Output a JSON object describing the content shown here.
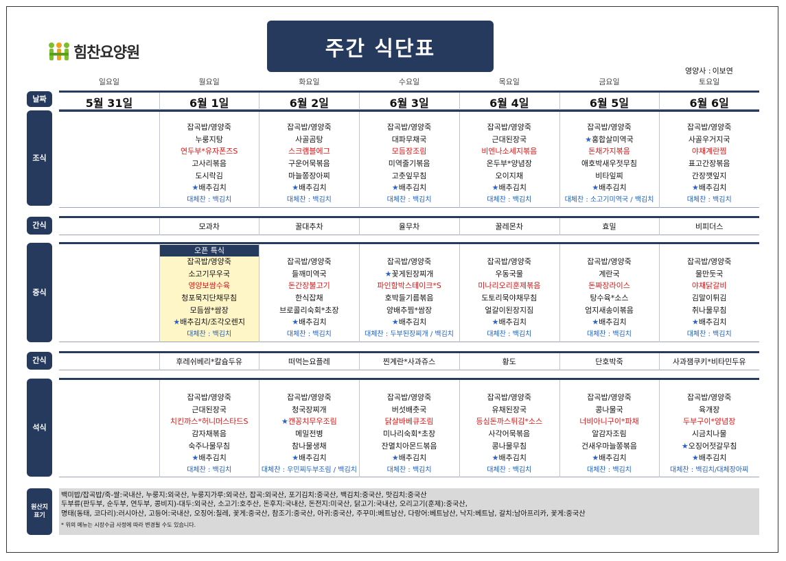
{
  "logo": {
    "text": "힘찬요양원"
  },
  "title": "주간 식단표",
  "dietitian": {
    "label": "영양사 :",
    "name": "이보연"
  },
  "days": [
    "일요일",
    "월요일",
    "화요일",
    "수요일",
    "목요일",
    "금요일",
    "토요일"
  ],
  "dates": [
    "5월 31일",
    "6월 1일",
    "6월 2일",
    "6월 3일",
    "6월 4일",
    "6월 5일",
    "6월 6일"
  ],
  "labels": {
    "date": "날짜",
    "breakfast": "조식",
    "snack1": "간식",
    "lunch": "중식",
    "snack2": "간식",
    "dinner": "석식",
    "origin": "원산지표기"
  },
  "special_label": "오픈 특식",
  "breakfast": [
    [],
    [
      {
        "t": "잡곡밥/영양죽"
      },
      {
        "t": "누룽지탕"
      },
      {
        "t": "연두부*유자폰즈S",
        "red": true
      },
      {
        "t": "고사리볶음"
      },
      {
        "t": "도시락김"
      },
      {
        "t": "배추김치",
        "star": true
      },
      {
        "t": "대체찬 : 백김치",
        "sub": true
      }
    ],
    [
      {
        "t": "잡곡밥/영양죽"
      },
      {
        "t": "사골곰탕"
      },
      {
        "t": "스크램블에그",
        "red": true
      },
      {
        "t": "구운어묵볶음"
      },
      {
        "t": "마늘쫑장아찌"
      },
      {
        "t": "배추김치",
        "star": true
      },
      {
        "t": "대체찬 : 백김치",
        "sub": true
      }
    ],
    [
      {
        "t": "잡곡밥/영양죽"
      },
      {
        "t": "대파무채국"
      },
      {
        "t": "모듬장조림",
        "red": true
      },
      {
        "t": "미역줄기볶음"
      },
      {
        "t": "고춧잎무침"
      },
      {
        "t": "배추김치",
        "star": true
      },
      {
        "t": "대체찬 : 백김치",
        "sub": true
      }
    ],
    [
      {
        "t": "잡곡밥/영양죽"
      },
      {
        "t": "근대된장국"
      },
      {
        "t": "비엔나소세지볶음",
        "red": true
      },
      {
        "t": "온두부*양념장"
      },
      {
        "t": "오이지채"
      },
      {
        "t": "배추김치",
        "star": true
      },
      {
        "t": "대체찬 : 백김치",
        "sub": true
      }
    ],
    [
      {
        "t": "잡곡밥/영양죽"
      },
      {
        "t": "홍합살미역국",
        "star": true
      },
      {
        "t": "돈채가지볶음",
        "red": true
      },
      {
        "t": "애호박새우젓무침"
      },
      {
        "t": "비타잎찌"
      },
      {
        "t": "배추김치",
        "star": true
      },
      {
        "t": "대체찬 : 소고기미역국 / 백김치",
        "sub": true
      }
    ],
    [
      {
        "t": "잡곡밥/영양죽"
      },
      {
        "t": "사골우거지국"
      },
      {
        "t": "야채계란찜",
        "red": true
      },
      {
        "t": "표고간장볶음"
      },
      {
        "t": "간장깻잎지"
      },
      {
        "t": "배추김치",
        "star": true
      },
      {
        "t": "대체찬 : 백김치",
        "sub": true
      }
    ]
  ],
  "snack1": [
    "",
    "모과차",
    "꿀대추차",
    "율무차",
    "꿀레몬차",
    "효밀",
    "비피더스"
  ],
  "lunch": [
    [],
    [
      {
        "t": "잡곡밥/영양죽"
      },
      {
        "t": "소고기무우국"
      },
      {
        "t": "영양보쌈수육",
        "red": true
      },
      {
        "t": "청포묵지단채무침"
      },
      {
        "t": "모듬쌈*쌈장"
      },
      {
        "t": "배추김치/조각오렌지",
        "star": true
      },
      {
        "t": "대체찬 : 백김치",
        "sub": true
      }
    ],
    [
      {
        "t": "잡곡밥/영양죽"
      },
      {
        "t": "들깨미역국"
      },
      {
        "t": "돈간장불고기",
        "red": true
      },
      {
        "t": "한식잡채"
      },
      {
        "t": "브로콜리숙회*초장"
      },
      {
        "t": "배추김치",
        "star": true
      },
      {
        "t": "대체찬 : 백김치",
        "sub": true
      }
    ],
    [
      {
        "t": "잡곡밥/영양죽"
      },
      {
        "t": "꽃게된장찌개",
        "star": true
      },
      {
        "t": "파인함박스테이크*S",
        "red": true
      },
      {
        "t": "호박들기름볶음"
      },
      {
        "t": "양배추찜*쌈장"
      },
      {
        "t": "배추김치",
        "star": true
      },
      {
        "t": "대체찬 : 두부된장찌개 / 백김치",
        "sub": true
      }
    ],
    [
      {
        "t": "잡곡밥/영양죽"
      },
      {
        "t": "우동국물"
      },
      {
        "t": "미나리오리훈제볶음",
        "red": true
      },
      {
        "t": "도토리묵야채무침"
      },
      {
        "t": "얼갈이된장지짐"
      },
      {
        "t": "배추김치",
        "star": true
      },
      {
        "t": "대체찬 : 백김치",
        "sub": true
      }
    ],
    [
      {
        "t": "잡곡밥/영양죽"
      },
      {
        "t": "계란국"
      },
      {
        "t": "돈짜장라이스",
        "red": true
      },
      {
        "t": "탕수육*소스"
      },
      {
        "t": "엄지새송이볶음"
      },
      {
        "t": "배추김치",
        "star": true
      },
      {
        "t": "대체찬 : 백김치",
        "sub": true
      }
    ],
    [
      {
        "t": "잡곡밥/영양죽"
      },
      {
        "t": "물만둣국"
      },
      {
        "t": "야채닭갈비",
        "red": true
      },
      {
        "t": "김말이튀김"
      },
      {
        "t": "취나물무침"
      },
      {
        "t": "배추김치",
        "star": true
      },
      {
        "t": "대체찬 : 백김치",
        "sub": true
      }
    ]
  ],
  "snack2": [
    "",
    "후레쉬베리*칼슘두유",
    "떠먹는요플레",
    "찐계란*사과쥬스",
    "황도",
    "단호박죽",
    "사과잼쿠키*비타민두유"
  ],
  "dinner": [
    [],
    [
      {
        "t": "잡곡밥/영양죽"
      },
      {
        "t": "근대된장국"
      },
      {
        "t": "치킨까스*허니머스타드S",
        "red": true
      },
      {
        "t": "감자채볶음"
      },
      {
        "t": "숙주나물무침"
      },
      {
        "t": "배추김치",
        "star": true
      },
      {
        "t": "대체찬 : 백김치",
        "sub": true
      }
    ],
    [
      {
        "t": "잡곡밥/영양죽"
      },
      {
        "t": "청국장찌개"
      },
      {
        "t": "캔꽁치무우조림",
        "red": true,
        "star": true
      },
      {
        "t": "메밀전병"
      },
      {
        "t": "참나물생채"
      },
      {
        "t": "배추김치",
        "star": true
      },
      {
        "t": "대체찬 : 우민찌두부조림 / 백김치",
        "sub": true
      }
    ],
    [
      {
        "t": "잡곡밥/영양죽"
      },
      {
        "t": "버섯배춧국"
      },
      {
        "t": "닭살바베큐조림",
        "red": true
      },
      {
        "t": "미나리숙회*초장"
      },
      {
        "t": "잔멸치아몬드볶음"
      },
      {
        "t": "배추김치",
        "star": true
      },
      {
        "t": "대체찬 : 백김치",
        "sub": true
      }
    ],
    [
      {
        "t": "잡곡밥/영양죽"
      },
      {
        "t": "유채된장국"
      },
      {
        "t": "등심돈까스튀김*소스",
        "red": true
      },
      {
        "t": "사각어묵볶음"
      },
      {
        "t": "콩나물무침"
      },
      {
        "t": "배추김치",
        "star": true
      },
      {
        "t": "대체찬 : 백김치",
        "sub": true
      }
    ],
    [
      {
        "t": "잡곡밥/영양죽"
      },
      {
        "t": "콩나물국"
      },
      {
        "t": "너비아니구이*파채",
        "red": true
      },
      {
        "t": "알감자조림"
      },
      {
        "t": "건새우마늘쫑볶음"
      },
      {
        "t": "배추김치",
        "star": true
      },
      {
        "t": "대체찬 : 백김치",
        "sub": true
      }
    ],
    [
      {
        "t": "잡곡밥/영양죽"
      },
      {
        "t": "육개장"
      },
      {
        "t": "두부구이*양념장",
        "red": true
      },
      {
        "t": "시금치나물"
      },
      {
        "t": "오징어젓갈무침",
        "star": true
      },
      {
        "t": "배추김치",
        "star": true
      },
      {
        "t": "대체찬 : 백김치/대체장아찌",
        "sub": true
      }
    ]
  ],
  "origin": {
    "lines": [
      "백미밥/잡곡밥/죽-쌀:국내산, 누룽지:외국산, 누룽지가루:외국산, 잡곡:외국산, 포기김치:중국산, 백김치:중국산, 맛김치:중국산",
      "두부류(판두부, 순두부, 연두부, 콩비지)-대두:외국산, 소고기:호주산, 돈후지:국내산, 돈전지:미국산, 닭고기:국내산, 오리고기(훈제):중국산,",
      "명태(동태, 코다리):러시아산, 고등어:국내산, 오징어:칠레, 꽃게:중국산, 참조기:중국산, 아귀:중국산, 주꾸미:베트남산, 다랑어:베트남산, 낙지:베트남, 갈치:남아프리카, 꽃게:중국산"
    ],
    "note": "* 위의 메뉴는 시장수급 사정에 따라 변경될 수도 있습니다."
  },
  "colors": {
    "navy": "#263a5e",
    "red": "#e01515",
    "blue": "#1f5fbf",
    "special_bg": "#fff6c8",
    "origin_bg": "#d9d9d9"
  }
}
